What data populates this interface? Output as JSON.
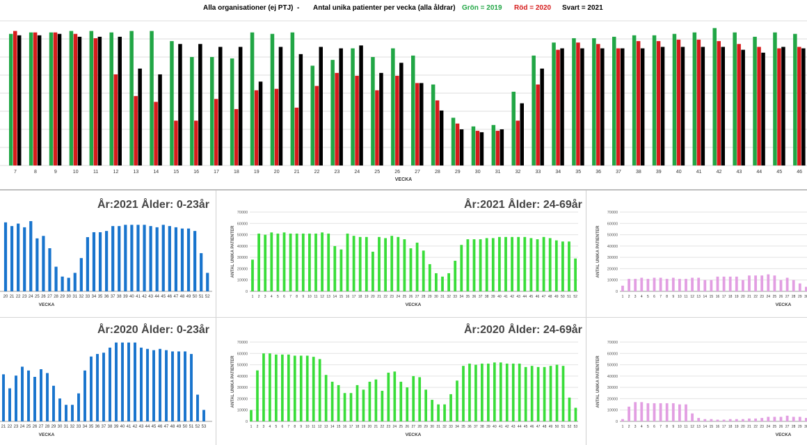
{
  "header": {
    "left": "Alla organisationer (ej PTJ)",
    "dash": "-",
    "middle": "Antal unika patienter per vecka (alla åldrar)",
    "green_label": "Grön = 2019",
    "red_label": "Röd = 2020",
    "black_label": "Svart = 2021"
  },
  "colors": {
    "y2019": "#21a645",
    "y2020": "#d61c1c",
    "y2021": "#000000",
    "blue": "#1874cd",
    "green": "#39dd39",
    "pink": "#e29ee2"
  },
  "chart_data": [
    {
      "type": "bar",
      "id": "main",
      "xlabel": "VECKA",
      "ylim": [
        0,
        100
      ],
      "categories": [
        "7",
        "8",
        "9",
        "10",
        "11",
        "12",
        "13",
        "14",
        "15",
        "16",
        "17",
        "18",
        "19",
        "20",
        "21",
        "22",
        "23",
        "24",
        "25",
        "26",
        "27",
        "28",
        "29",
        "30",
        "31",
        "32",
        "33",
        "34",
        "35",
        "36",
        "37",
        "38",
        "39",
        "40",
        "41",
        "42",
        "43",
        "44",
        "45",
        "46"
      ],
      "series": [
        {
          "name": "Grön = 2019",
          "color": "#21a645",
          "values": [
            91,
            92,
            92,
            93,
            93,
            92,
            93,
            93,
            86,
            75,
            75,
            74,
            92,
            91,
            92,
            69,
            73,
            81,
            75,
            81,
            76,
            56,
            33,
            27,
            28,
            51,
            76,
            85,
            88,
            88,
            89,
            90,
            90,
            91,
            92,
            95,
            92,
            89,
            92,
            91
          ]
        },
        {
          "name": "Röd = 2020",
          "color": "#d61c1c",
          "values": [
            93,
            92,
            92,
            91,
            88,
            63,
            48,
            44,
            31,
            31,
            46,
            39,
            52,
            53,
            40,
            55,
            64,
            62,
            52,
            62,
            57,
            45,
            29,
            24,
            24,
            31,
            56,
            80,
            85,
            84,
            81,
            86,
            86,
            87,
            87,
            86,
            84,
            82,
            81,
            82
          ]
        },
        {
          "name": "Svart = 2021",
          "color": "#000000",
          "values": [
            90,
            90,
            91,
            89,
            89,
            89,
            67,
            63,
            84,
            84,
            82,
            82,
            58,
            82,
            77,
            82,
            81,
            83,
            64,
            71,
            57,
            38,
            25,
            23,
            25,
            43,
            67,
            81,
            81,
            81,
            81,
            81,
            82,
            82,
            82,
            82,
            80,
            78,
            82,
            81
          ]
        }
      ]
    },
    {
      "type": "bar",
      "id": "p2021_young",
      "title": "År:2021   Ålder: 0-23år",
      "xlabel": "VECKA",
      "categories": [
        "20",
        "21",
        "22",
        "23",
        "24",
        "25",
        "26",
        "27",
        "28",
        "29",
        "30",
        "31",
        "32",
        "33",
        "34",
        "35",
        "36",
        "37",
        "38",
        "39",
        "40",
        "41",
        "42",
        "43",
        "44",
        "45",
        "46",
        "47",
        "48",
        "49",
        "50",
        "51",
        "52"
      ],
      "values": [
        56000,
        53000,
        55000,
        52000,
        57000,
        43000,
        45000,
        35000,
        20000,
        12000,
        11000,
        15000,
        27000,
        44000,
        48000,
        48000,
        49000,
        53000,
        53000,
        54000,
        54000,
        54000,
        54000,
        53000,
        52000,
        54000,
        53000,
        52000,
        51000,
        51000,
        49000,
        31000,
        15000
      ]
    },
    {
      "type": "bar",
      "id": "p2021_mid",
      "title": "År:2021   Ålder: 24-69år",
      "xlabel": "VECKA",
      "ylabel": "ANTAL UNIKA PATIENTER",
      "ylim": [
        0,
        70000
      ],
      "yticks": [
        "0",
        "10000",
        "20000",
        "30000",
        "40000",
        "50000",
        "60000",
        "70000"
      ],
      "categories": [
        "1",
        "2",
        "3",
        "4",
        "5",
        "6",
        "7",
        "8",
        "9",
        "10",
        "11",
        "12",
        "13",
        "14",
        "15",
        "16",
        "17",
        "18",
        "19",
        "20",
        "21",
        "22",
        "23",
        "24",
        "25",
        "26",
        "27",
        "28",
        "29",
        "30",
        "31",
        "32",
        "33",
        "34",
        "35",
        "36",
        "37",
        "38",
        "39",
        "40",
        "41",
        "42",
        "43",
        "44",
        "45",
        "46",
        "47",
        "48",
        "49",
        "50",
        "51",
        "52"
      ],
      "values": [
        28000,
        51000,
        50000,
        52000,
        51000,
        52000,
        51000,
        51000,
        51000,
        51000,
        51000,
        52000,
        51000,
        40000,
        37000,
        51000,
        49000,
        48000,
        48000,
        35000,
        48000,
        47000,
        49000,
        48000,
        46000,
        38000,
        43000,
        36000,
        24000,
        16000,
        13000,
        16000,
        27000,
        41000,
        46000,
        46000,
        46000,
        47000,
        47000,
        48000,
        48000,
        48000,
        48000,
        48000,
        47000,
        46000,
        48000,
        47000,
        45000,
        44000,
        44000,
        29000
      ]
    },
    {
      "type": "bar",
      "id": "p2021_old",
      "ylabel": "ANTAL UNIKA PATIENTER",
      "ylim": [
        0,
        70000
      ],
      "xlabel": "VECKA",
      "yticks": [
        "0",
        "10000",
        "20000",
        "30000",
        "40000",
        "50000",
        "60000",
        "70000"
      ],
      "categories": [
        "1",
        "2",
        "3",
        "4",
        "5",
        "6",
        "7",
        "8",
        "9",
        "10",
        "11",
        "12",
        "13",
        "14",
        "15",
        "16",
        "17",
        "18",
        "19",
        "20",
        "21",
        "22",
        "23",
        "24",
        "25",
        "26",
        "27",
        "28",
        "29",
        "30"
      ],
      "values": [
        5000,
        11000,
        11000,
        12000,
        11000,
        12000,
        12000,
        11000,
        12000,
        11000,
        11000,
        12000,
        12000,
        10000,
        10000,
        13000,
        13000,
        13000,
        13000,
        10000,
        14000,
        14000,
        14000,
        15000,
        14000,
        10000,
        12000,
        10000,
        7000,
        4000
      ]
    },
    {
      "type": "bar",
      "id": "p2020_young",
      "title": "År:2020   Ålder: 0-23år",
      "xlabel": "VECKA",
      "categories": [
        "21",
        "22",
        "23",
        "24",
        "25",
        "26",
        "27",
        "28",
        "29",
        "30",
        "31",
        "32",
        "33",
        "34",
        "35",
        "36",
        "37",
        "38",
        "39",
        "40",
        "41",
        "42",
        "43",
        "44",
        "45",
        "46",
        "47",
        "48",
        "49",
        "50",
        "51",
        "52",
        "53"
      ],
      "values": [
        37000,
        26000,
        36000,
        43000,
        40000,
        35000,
        41000,
        38000,
        28000,
        18000,
        13000,
        13000,
        22000,
        40000,
        51000,
        53000,
        54000,
        58000,
        62000,
        62000,
        62000,
        62000,
        58000,
        57000,
        56000,
        57000,
        56000,
        55000,
        55000,
        55000,
        53000,
        21000,
        9000
      ]
    },
    {
      "type": "bar",
      "id": "p2020_mid",
      "title": "År:2020   Ålder: 24-69år",
      "xlabel": "VECKA",
      "ylabel": "ANTAL UNIKA PATIENTER",
      "ylim": [
        0,
        70000
      ],
      "yticks": [
        "0",
        "10000",
        "20000",
        "30000",
        "40000",
        "50000",
        "60000",
        "70000"
      ],
      "categories": [
        "1",
        "2",
        "3",
        "4",
        "5",
        "6",
        "7",
        "8",
        "9",
        "10",
        "11",
        "12",
        "13",
        "14",
        "15",
        "16",
        "17",
        "18",
        "19",
        "20",
        "21",
        "22",
        "23",
        "24",
        "25",
        "26",
        "27",
        "28",
        "29",
        "30",
        "31",
        "32",
        "33",
        "34",
        "35",
        "36",
        "37",
        "38",
        "39",
        "40",
        "41",
        "42",
        "43",
        "44",
        "45",
        "46",
        "47",
        "48",
        "49",
        "50",
        "51",
        "52",
        "53"
      ],
      "values": [
        10000,
        45000,
        60000,
        60000,
        59000,
        59000,
        59000,
        58000,
        58000,
        58000,
        57000,
        55000,
        41000,
        35000,
        32000,
        25000,
        25000,
        32000,
        28000,
        35000,
        37000,
        27000,
        43000,
        44000,
        35000,
        30000,
        40000,
        39000,
        28000,
        19000,
        15000,
        15000,
        24000,
        36000,
        49000,
        51000,
        50000,
        51000,
        51000,
        52000,
        52000,
        51000,
        51000,
        51000,
        48000,
        49000,
        48000,
        48000,
        49000,
        50000,
        49000,
        21000,
        12000
      ]
    },
    {
      "type": "bar",
      "id": "p2020_old",
      "ylabel": "ANTAL UNIKA PATIENTER",
      "ylim": [
        0,
        70000
      ],
      "xlabel": "VECKA",
      "yticks": [
        "0",
        "10000",
        "20000",
        "30000",
        "40000",
        "50000",
        "60000",
        "70000"
      ],
      "categories": [
        "1",
        "2",
        "3",
        "4",
        "5",
        "6",
        "7",
        "8",
        "9",
        "10",
        "11",
        "12",
        "13",
        "14",
        "15",
        "16",
        "17",
        "18",
        "19",
        "20",
        "21",
        "22",
        "23",
        "24",
        "25",
        "26",
        "27",
        "28",
        "29",
        "30"
      ],
      "values": [
        2000,
        13000,
        17000,
        17000,
        16000,
        16000,
        16000,
        16000,
        16000,
        15000,
        15000,
        7000,
        3000,
        2000,
        2000,
        1500,
        1500,
        2000,
        2000,
        2000,
        2500,
        2500,
        3000,
        4000,
        4000,
        4000,
        5000,
        4000,
        4000,
        3000
      ]
    }
  ]
}
